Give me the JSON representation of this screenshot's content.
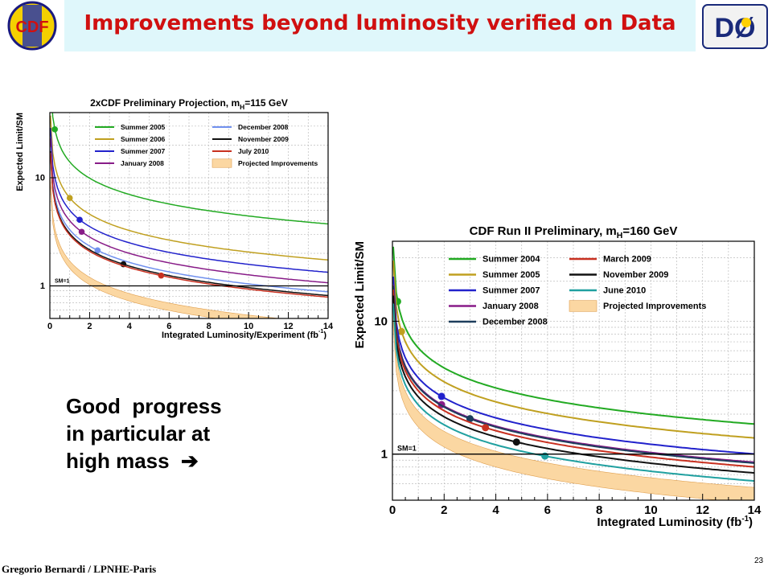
{
  "header": {
    "title": "Improvements beyond luminosity verified on Data",
    "left_logo_text": "CDF",
    "right_logo_text": "DØ"
  },
  "body_text": {
    "line1": "Good  progress",
    "line2": "in particular at",
    "line3": "high mass",
    "arrow": "➔"
  },
  "footer": {
    "author": "Gregorio Bernardi / LPNHE-Paris",
    "slide_number": "23"
  },
  "colors": {
    "title_red": "#d01010",
    "title_bar_bg": "#dff7fb",
    "band_fill": "#fbd7a2"
  },
  "chart_data": [
    {
      "type": "line",
      "title_main": "2xCDF Preliminary Projection, m",
      "title_sub": "H",
      "title_tail": "=115 GeV",
      "xlabel": "Integrated Luminosity/Experiment (fb",
      "xlabel_sup": "-1",
      "xlabel_tail": ")",
      "ylabel": "Expected Limit/SM",
      "xlim": [
        0,
        14
      ],
      "ylim": [
        0.5,
        40
      ],
      "y_scale": "log",
      "grid": true,
      "legend_position": "top",
      "x_ticks": [
        0,
        2,
        4,
        6,
        8,
        10,
        12,
        14
      ],
      "y_ticks": [
        1,
        10
      ],
      "reference_line": {
        "y": 1,
        "label": "SM=1"
      },
      "band": {
        "name": "Projected Improvements",
        "color": "#fbd7a2",
        "upper_A": 1.7,
        "lower_A": 1.45,
        "exponent": 0.5
      },
      "series": [
        {
          "name": "Summer 2005",
          "color": "#22aa22",
          "A": 14,
          "x": 0.25,
          "marker_x": 0.25
        },
        {
          "name": "Summer 2006",
          "color": "#c0a020",
          "A": 6.5,
          "marker_x": 1.0
        },
        {
          "name": "Summer 2007",
          "color": "#2222cc",
          "A": 5.0,
          "marker_x": 1.5
        },
        {
          "name": "January 2008",
          "color": "#881c88",
          "A": 4.0,
          "marker_x": 1.6
        },
        {
          "name": "December 2008",
          "color": "#7090ee",
          "A": 3.3,
          "marker_x": 2.4
        },
        {
          "name": "November 2009",
          "color": "#111111",
          "A": 3.05,
          "marker_x": 3.7
        },
        {
          "name": "July 2010",
          "color": "#c83020",
          "A": 2.95,
          "marker_x": 5.6
        },
        {
          "name": "Projected Improvements",
          "color": "#fbd7a2"
        }
      ]
    },
    {
      "type": "line",
      "title_main": "CDF Run II Preliminary, m",
      "title_sub": "H",
      "title_tail": "=160 GeV",
      "xlabel": "Integrated Luminosity (fb",
      "xlabel_sup": "-1",
      "xlabel_tail": ")",
      "ylabel": "Expected Limit/SM",
      "xlim": [
        0,
        14
      ],
      "ylim": [
        0.45,
        40
      ],
      "y_scale": "log",
      "grid": true,
      "legend_position": "top",
      "x_ticks": [
        0,
        2,
        4,
        6,
        8,
        10,
        12,
        14
      ],
      "y_ticks": [
        1,
        10
      ],
      "reference_line": {
        "y": 1,
        "label": "SM=1"
      },
      "band": {
        "name": "Projected Improvements",
        "color": "#fbd7a2",
        "upper_A": 2.1,
        "lower_A": 1.6,
        "exponent": 0.5
      },
      "series": [
        {
          "name": "Summer 2004",
          "color": "#22aa22",
          "A": 6.3,
          "marker_x": 0.2
        },
        {
          "name": "Summer 2005",
          "color": "#c0a020",
          "A": 4.95,
          "marker_x": 0.35
        },
        {
          "name": "Summer 2007",
          "color": "#2222cc",
          "A": 3.75,
          "marker_x": 1.9
        },
        {
          "name": "January 2008",
          "color": "#881c88",
          "A": 3.25,
          "marker_x": 1.9
        },
        {
          "name": "December 2008",
          "color": "#1d3d5c",
          "A": 3.2,
          "marker_x": 3.0
        },
        {
          "name": "March 2009",
          "color": "#c83020",
          "A": 3.0,
          "marker_x": 3.6
        },
        {
          "name": "November 2009",
          "color": "#111111",
          "A": 2.7,
          "marker_x": 4.8
        },
        {
          "name": "June 2010",
          "color": "#20a0a0",
          "A": 2.35,
          "marker_x": 5.9
        },
        {
          "name": "Projected Improvements",
          "color": "#fbd7a2"
        }
      ]
    }
  ]
}
